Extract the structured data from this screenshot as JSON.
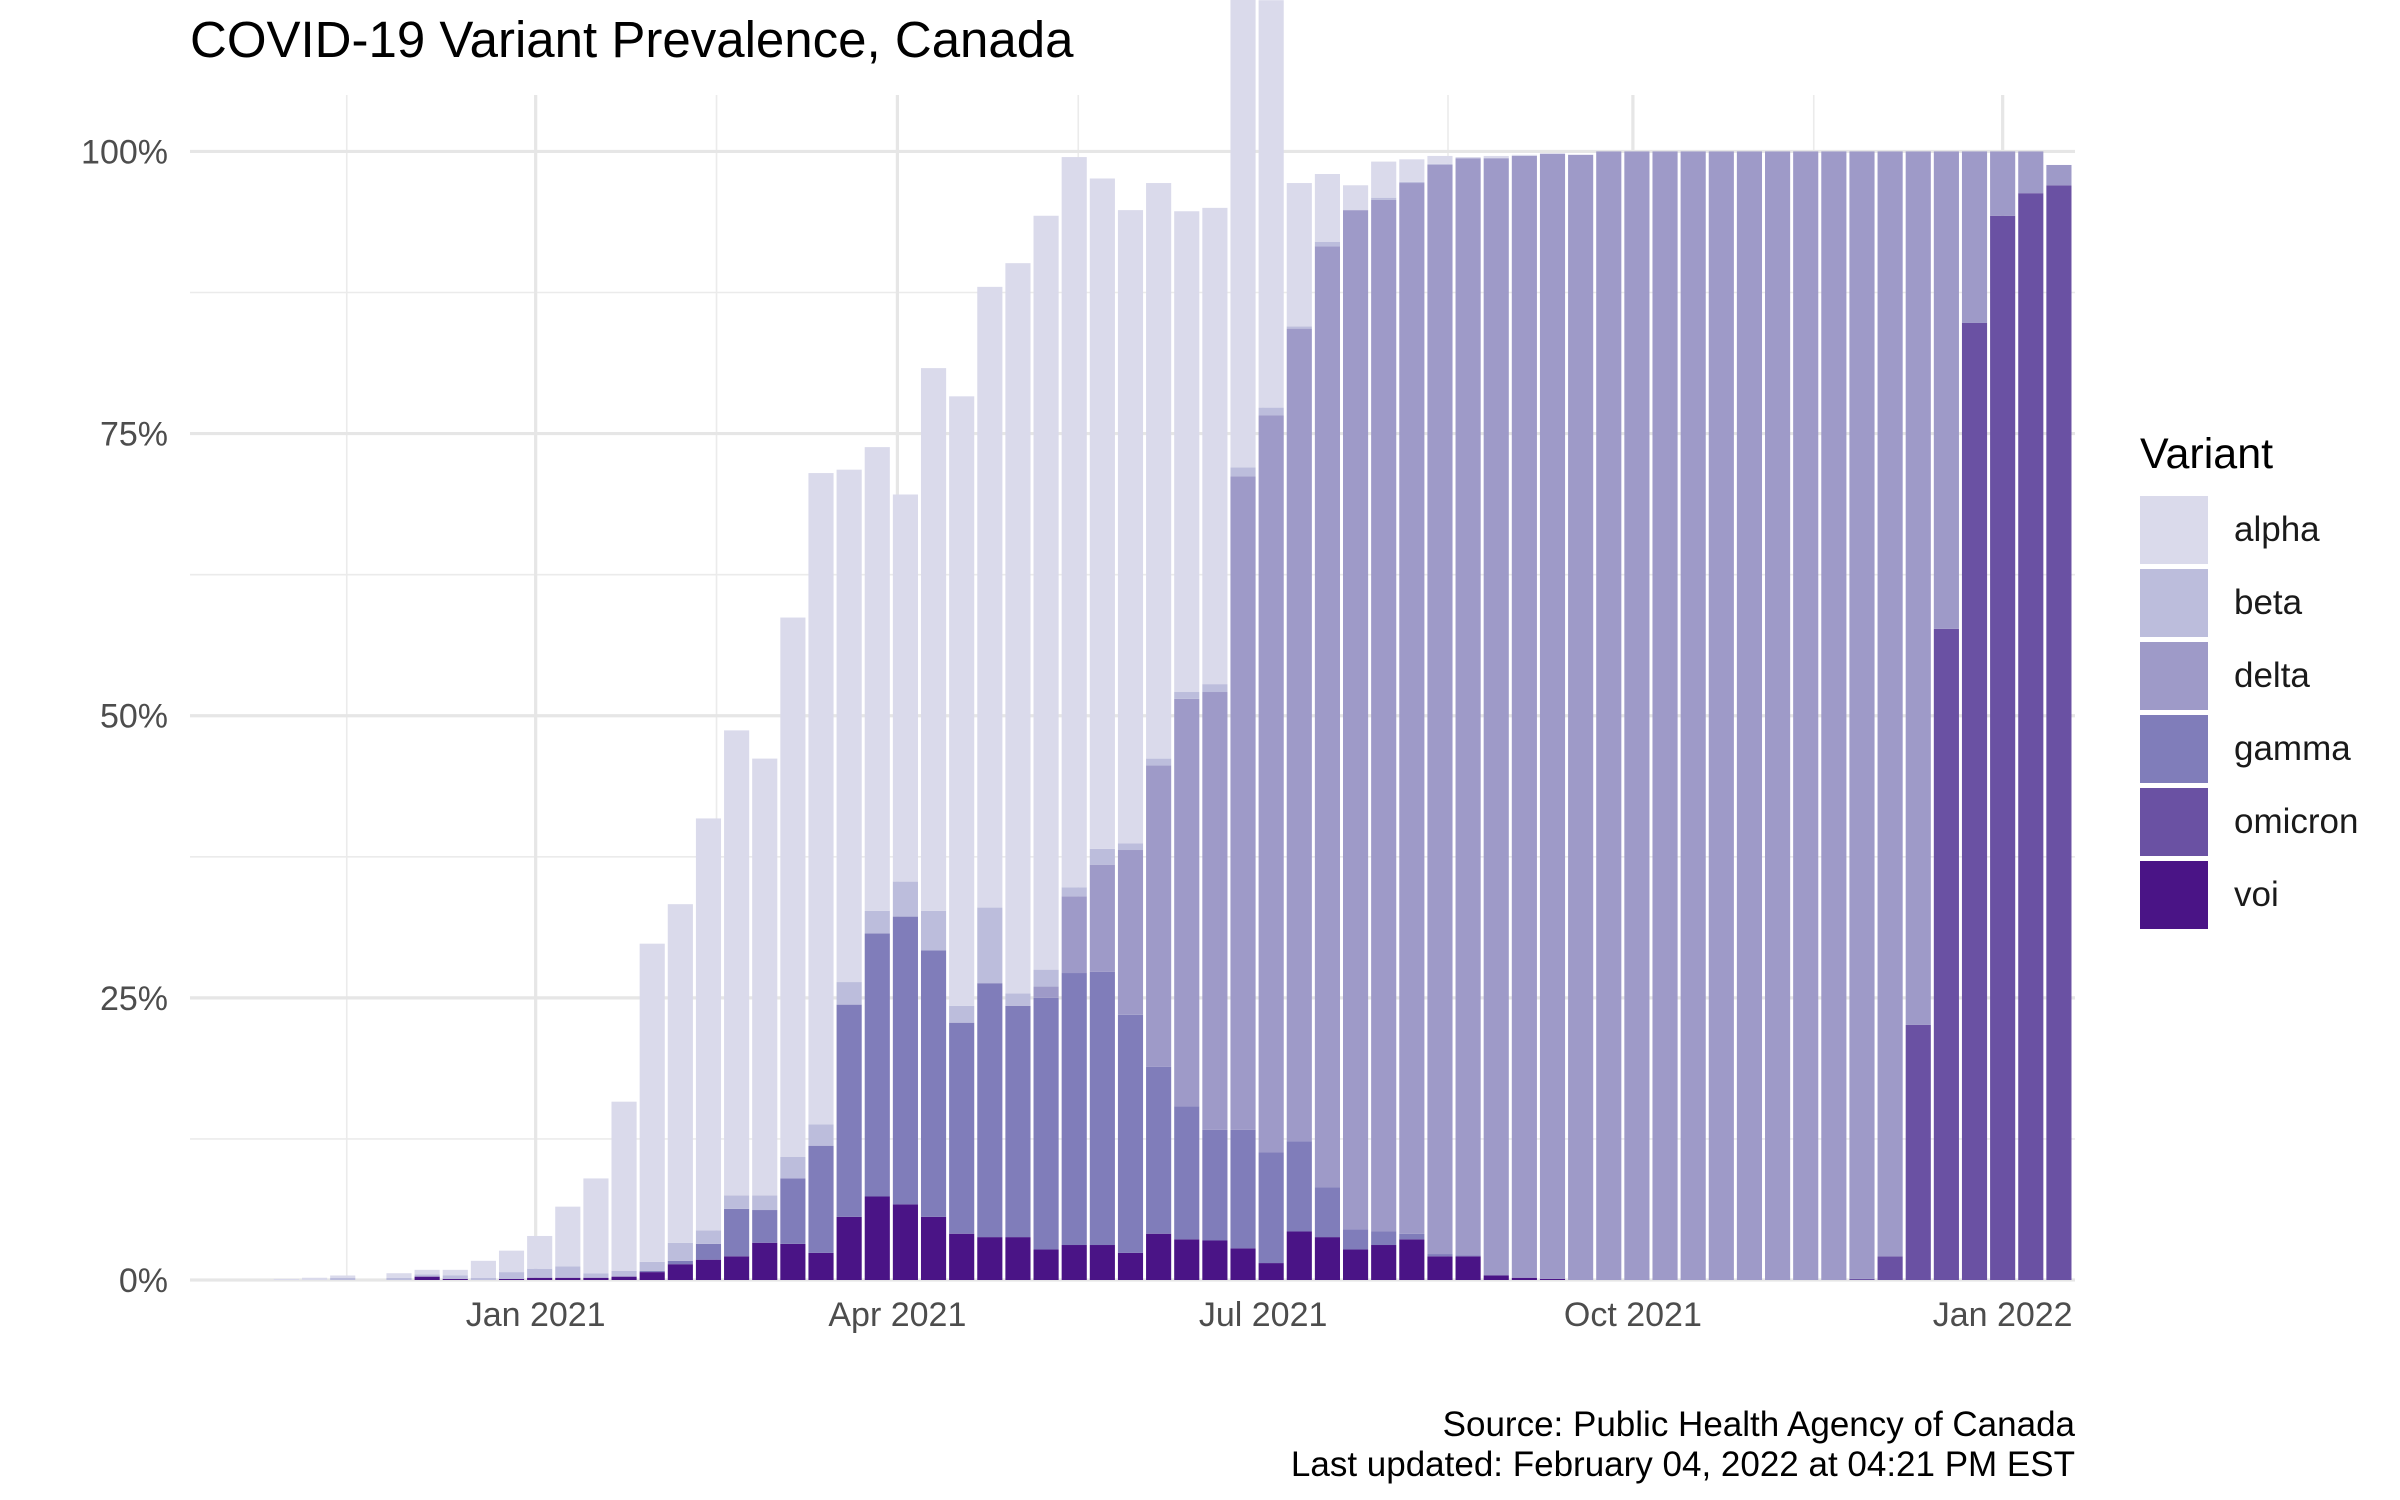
{
  "chart_data": {
    "type": "bar",
    "stacked": true,
    "title": "COVID-19 Variant Prevalence, Canada",
    "xlabel": "",
    "ylabel": "",
    "x_unit": "week",
    "xlim": [
      "2020-10-07",
      "2022-01-19"
    ],
    "ylim": [
      0,
      1.05
    ],
    "y_ticks": [
      {
        "value": 0,
        "label": "0%"
      },
      {
        "value": 0.25,
        "label": "25%"
      },
      {
        "value": 0.5,
        "label": "50%"
      },
      {
        "value": 0.75,
        "label": "75%"
      },
      {
        "value": 1,
        "label": "100%"
      }
    ],
    "x_ticks": [
      {
        "date": "2021-01-01",
        "label": "Jan 2021"
      },
      {
        "date": "2021-04-01",
        "label": "Apr 2021"
      },
      {
        "date": "2021-07-01",
        "label": "Jul 2021"
      },
      {
        "date": "2021-10-01",
        "label": "Oct 2021"
      },
      {
        "date": "2022-01-01",
        "label": "Jan 2022"
      }
    ],
    "x_minor_ticks": [
      "2020-11-15",
      "2021-02-15",
      "2021-05-16",
      "2021-08-16",
      "2021-11-15"
    ],
    "grid": true,
    "legend_title": "Variant",
    "legend_position": "right",
    "stack_order": [
      "voi",
      "omicron",
      "gamma",
      "delta",
      "beta",
      "alpha"
    ],
    "dates": [
      "2020-10-31",
      "2020-11-07",
      "2020-11-14",
      "2020-11-21",
      "2020-11-28",
      "2020-12-05",
      "2020-12-12",
      "2020-12-19",
      "2020-12-26",
      "2021-01-02",
      "2021-01-09",
      "2021-01-16",
      "2021-01-23",
      "2021-01-30",
      "2021-02-06",
      "2021-02-13",
      "2021-02-20",
      "2021-02-27",
      "2021-03-06",
      "2021-03-13",
      "2021-03-20",
      "2021-03-27",
      "2021-04-03",
      "2021-04-10",
      "2021-04-17",
      "2021-04-24",
      "2021-05-01",
      "2021-05-08",
      "2021-05-15",
      "2021-05-22",
      "2021-05-29",
      "2021-06-05",
      "2021-06-12",
      "2021-06-19",
      "2021-06-26",
      "2021-07-03",
      "2021-07-10",
      "2021-07-17",
      "2021-07-24",
      "2021-07-31",
      "2021-08-07",
      "2021-08-14",
      "2021-08-21",
      "2021-08-28",
      "2021-09-04",
      "2021-09-11",
      "2021-09-18",
      "2021-09-25",
      "2021-10-02",
      "2021-10-09",
      "2021-10-16",
      "2021-10-23",
      "2021-10-30",
      "2021-11-06",
      "2021-11-13",
      "2021-11-20",
      "2021-11-27",
      "2021-12-04",
      "2021-12-11",
      "2021-12-18",
      "2021-12-25",
      "2022-01-01",
      "2022-01-08",
      "2022-01-15"
    ],
    "series": [
      {
        "name": "voi",
        "color": "#4a1486",
        "values": [
          0,
          0,
          0,
          0,
          0,
          0.003,
          0.001,
          0,
          0.001,
          0.002,
          0.002,
          0.002,
          0.003,
          0.007,
          0.014,
          0.018,
          0.021,
          0.033,
          0.032,
          0.024,
          0.056,
          0.074,
          0.067,
          0.056,
          0.041,
          0.038,
          0.038,
          0.027,
          0.031,
          0.031,
          0.024,
          0.041,
          0.036,
          0.035,
          0.028,
          0.015,
          0.043,
          0.038,
          0.027,
          0.031,
          0.036,
          0.021,
          0.021,
          0.004,
          0.002,
          0.001,
          0,
          0,
          0,
          0,
          0,
          0,
          0,
          0,
          0,
          0,
          0,
          0,
          0,
          0,
          0,
          0,
          0,
          0
        ]
      },
      {
        "name": "omicron",
        "color": "#6a51a3",
        "values": [
          0,
          0,
          0,
          0,
          0,
          0,
          0,
          0,
          0,
          0,
          0,
          0,
          0,
          0,
          0,
          0,
          0,
          0,
          0,
          0,
          0,
          0,
          0,
          0,
          0,
          0,
          0,
          0,
          0,
          0,
          0,
          0,
          0,
          0,
          0,
          0,
          0,
          0,
          0,
          0,
          0,
          0,
          0,
          0,
          0,
          0,
          0,
          0,
          0,
          0,
          0,
          0,
          0,
          0,
          0,
          0,
          0.001,
          0.021,
          0.226,
          0.577,
          0.848,
          0.943,
          0.963,
          0.97
        ]
      },
      {
        "name": "gamma",
        "color": "#807dba",
        "values": [
          0,
          0,
          0,
          0,
          0,
          0,
          0,
          0,
          0,
          0,
          0,
          0,
          0,
          0.001,
          0.003,
          0.014,
          0.042,
          0.029,
          0.058,
          0.095,
          0.188,
          0.233,
          0.255,
          0.236,
          0.187,
          0.225,
          0.205,
          0.223,
          0.241,
          0.242,
          0.211,
          0.148,
          0.118,
          0.098,
          0.105,
          0.098,
          0.08,
          0.044,
          0.018,
          0.012,
          0.005,
          0.002,
          0.001,
          0,
          0,
          0,
          0,
          0,
          0,
          0,
          0,
          0,
          0,
          0,
          0,
          0,
          0,
          0,
          0,
          0,
          0,
          0,
          0,
          0
        ]
      },
      {
        "name": "delta",
        "color": "#9e9ac8",
        "values": [
          0,
          0,
          0,
          0,
          0,
          0,
          0,
          0,
          0,
          0,
          0,
          0,
          0,
          0,
          0,
          0,
          0,
          0,
          0,
          0,
          0,
          0,
          0,
          0,
          0,
          0,
          0,
          0.01,
          0.068,
          0.095,
          0.146,
          0.267,
          0.361,
          0.388,
          0.579,
          0.653,
          0.72,
          0.834,
          0.903,
          0.914,
          0.931,
          0.965,
          0.972,
          0.99,
          0.994,
          0.997,
          0.997,
          1.0,
          1.0,
          1.0,
          1.0,
          1.0,
          1.0,
          1.0,
          1.0,
          1.0,
          0.999,
          0.979,
          0.774,
          0.423,
          0.152,
          0.057,
          0.037,
          0.018
        ]
      },
      {
        "name": "beta",
        "color": "#bcbddc",
        "values": [
          0,
          0,
          0.002,
          0,
          0.002,
          0.002,
          0.003,
          0.002,
          0.006,
          0.008,
          0.01,
          0.004,
          0.005,
          0.008,
          0.016,
          0.012,
          0.012,
          0.013,
          0.019,
          0.019,
          0.02,
          0.02,
          0.031,
          0.035,
          0.015,
          0.067,
          0.011,
          0.015,
          0.008,
          0.014,
          0.006,
          0.006,
          0.006,
          0.007,
          0.008,
          0.007,
          0.002,
          0.004,
          0,
          0.002,
          0.001,
          0.001,
          0,
          0,
          0,
          0,
          0,
          0,
          0,
          0,
          0,
          0,
          0,
          0,
          0,
          0,
          0,
          0,
          0,
          0,
          0,
          0,
          0,
          0
        ]
      },
      {
        "name": "alpha",
        "color": "#dadaeb",
        "values": [
          0.001,
          0.002,
          0.002,
          0,
          0.004,
          0.004,
          0.005,
          0.015,
          0.019,
          0.029,
          0.053,
          0.084,
          0.15,
          0.282,
          0.3,
          0.365,
          0.412,
          0.387,
          0.478,
          0.577,
          0.454,
          0.411,
          0.343,
          0.481,
          0.54,
          0.55,
          0.647,
          0.668,
          0.647,
          0.594,
          0.561,
          0.51,
          0.426,
          0.422,
          0.454,
          0.361,
          0.127,
          0.06,
          0.022,
          0.032,
          0.02,
          0.007,
          0.001,
          0.002,
          0.001,
          0,
          0,
          0,
          0,
          0,
          0,
          0,
          0,
          0,
          0,
          0,
          0,
          0,
          0,
          0,
          0,
          0,
          0,
          0
        ]
      }
    ],
    "caption": [
      "Source: Public Health Agency of Canada",
      "Last updated: February 04, 2022 at 04:21 PM EST"
    ]
  }
}
